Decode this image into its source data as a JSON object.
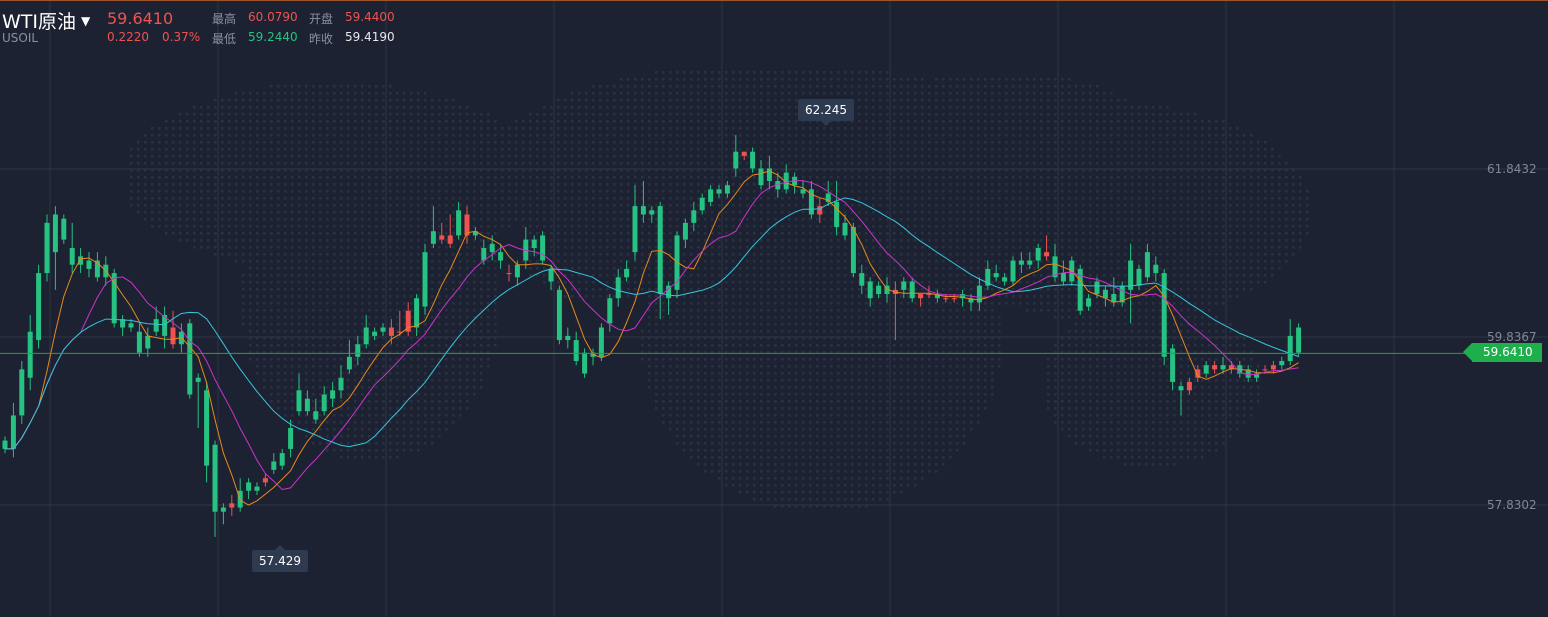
{
  "header": {
    "symbol_name": "WTI原油",
    "symbol_code": "USOIL",
    "last_price": "59.6410",
    "change": "0.2220",
    "change_pct": "0.37%",
    "high_label": "最高",
    "high_value": "60.0790",
    "low_label": "最低",
    "low_value": "59.2440",
    "open_label": "开盘",
    "open_value": "59.4400",
    "prev_close_label": "昨收",
    "prev_close_value": "59.4190"
  },
  "colors": {
    "up": "#ef5350",
    "down": "#26c281",
    "ma_fast": "#e8891b",
    "ma_mid": "#cc33cc",
    "ma_slow": "#38c6da",
    "current_line": "#2e9e3f"
  },
  "chart_data": {
    "type": "candlestick",
    "y_axis_ticks": [
      "61.8432",
      "59.8367",
      "57.8302"
    ],
    "current_price_label": "59.6410",
    "annotations": {
      "max_label": "62.245",
      "min_label": "57.429"
    },
    "candles": [
      [
        58.6,
        58.5,
        58.45,
        58.65
      ],
      [
        58.9,
        58.5,
        58.4,
        59.05
      ],
      [
        59.45,
        58.9,
        58.8,
        59.55
      ],
      [
        59.9,
        59.35,
        59.2,
        60.1
      ],
      [
        60.6,
        59.8,
        59.7,
        60.7
      ],
      [
        61.2,
        60.6,
        60.5,
        61.3
      ],
      [
        61.3,
        60.85,
        60.4,
        61.4
      ],
      [
        61.25,
        61.0,
        60.95,
        61.3
      ],
      [
        60.9,
        60.7,
        60.6,
        61.2
      ],
      [
        60.8,
        60.7,
        60.6,
        60.9
      ],
      [
        60.75,
        60.65,
        60.55,
        60.85
      ],
      [
        60.75,
        60.55,
        60.5,
        60.85
      ],
      [
        60.7,
        60.55,
        60.45,
        60.8
      ],
      [
        60.6,
        60.0,
        59.95,
        60.65
      ],
      [
        60.05,
        59.95,
        59.85,
        60.1
      ],
      [
        60.0,
        59.95,
        59.9,
        60.05
      ],
      [
        59.9,
        59.65,
        59.6,
        60.0
      ],
      [
        59.85,
        59.7,
        59.6,
        59.95
      ],
      [
        60.05,
        59.9,
        59.85,
        60.2
      ],
      [
        60.1,
        59.85,
        59.7,
        60.2
      ],
      [
        59.75,
        59.95,
        59.7,
        60.15
      ],
      [
        59.9,
        59.75,
        59.65,
        60.0
      ],
      [
        60.0,
        59.15,
        59.1,
        60.05
      ],
      [
        59.35,
        59.3,
        58.75,
        59.4
      ],
      [
        59.2,
        58.3,
        58.1,
        59.3
      ],
      [
        58.55,
        57.75,
        57.45,
        58.6
      ],
      [
        57.8,
        57.75,
        57.6,
        57.85
      ],
      [
        57.8,
        57.85,
        57.7,
        57.95
      ],
      [
        58.0,
        57.8,
        57.75,
        58.15
      ],
      [
        58.1,
        58.0,
        57.9,
        58.15
      ],
      [
        58.05,
        58.0,
        57.95,
        58.1
      ],
      [
        58.1,
        58.15,
        58.05,
        58.2
      ],
      [
        58.35,
        58.25,
        58.2,
        58.45
      ],
      [
        58.45,
        58.3,
        58.25,
        58.5
      ],
      [
        58.75,
        58.5,
        58.4,
        58.85
      ],
      [
        59.2,
        58.95,
        58.9,
        59.4
      ],
      [
        59.1,
        58.95,
        58.9,
        59.2
      ],
      [
        58.95,
        58.85,
        58.8,
        59.1
      ],
      [
        59.15,
        58.95,
        58.9,
        59.25
      ],
      [
        59.2,
        59.1,
        59.0,
        59.3
      ],
      [
        59.35,
        59.2,
        59.1,
        59.5
      ],
      [
        59.6,
        59.45,
        59.4,
        59.8
      ],
      [
        59.75,
        59.6,
        59.5,
        59.85
      ],
      [
        59.95,
        59.75,
        59.7,
        60.1
      ],
      [
        59.9,
        59.85,
        59.8,
        59.95
      ],
      [
        59.95,
        59.9,
        59.85,
        60.0
      ],
      [
        59.85,
        59.95,
        59.75,
        60.05
      ],
      [
        59.9,
        59.9,
        59.85,
        60.15
      ],
      [
        59.9,
        60.15,
        59.85,
        60.25
      ],
      [
        60.3,
        59.95,
        59.85,
        60.35
      ],
      [
        60.85,
        60.2,
        60.1,
        60.95
      ],
      [
        61.1,
        60.95,
        60.9,
        61.4
      ],
      [
        61.0,
        61.05,
        60.95,
        61.2
      ],
      [
        60.95,
        61.05,
        60.9,
        61.3
      ],
      [
        61.35,
        61.05,
        61.0,
        61.45
      ],
      [
        61.05,
        61.3,
        60.95,
        61.4
      ],
      [
        61.1,
        61.05,
        61.0,
        61.15
      ],
      [
        60.9,
        60.75,
        60.7,
        61.0
      ],
      [
        60.95,
        60.85,
        60.75,
        61.05
      ],
      [
        60.85,
        60.75,
        60.65,
        60.95
      ],
      [
        60.6,
        60.6,
        60.5,
        60.7
      ],
      [
        60.7,
        60.55,
        60.45,
        60.75
      ],
      [
        61.0,
        60.75,
        60.65,
        61.15
      ],
      [
        61.0,
        60.9,
        60.8,
        61.05
      ],
      [
        61.05,
        60.75,
        60.7,
        61.1
      ],
      [
        60.65,
        60.5,
        60.4,
        60.7
      ],
      [
        60.4,
        59.8,
        59.75,
        60.45
      ],
      [
        59.85,
        59.8,
        59.7,
        59.95
      ],
      [
        59.8,
        59.55,
        59.5,
        59.9
      ],
      [
        59.65,
        59.4,
        59.35,
        59.7
      ],
      [
        59.65,
        59.6,
        59.5,
        59.7
      ],
      [
        59.95,
        59.6,
        59.55,
        60.0
      ],
      [
        60.3,
        60.0,
        59.9,
        60.35
      ],
      [
        60.55,
        60.3,
        60.2,
        60.65
      ],
      [
        60.65,
        60.55,
        60.5,
        60.75
      ],
      [
        61.4,
        60.85,
        60.75,
        61.65
      ],
      [
        61.4,
        61.3,
        61.2,
        61.7
      ],
      [
        61.35,
        61.3,
        61.2,
        61.4
      ],
      [
        61.4,
        60.35,
        60.05,
        61.45
      ],
      [
        60.45,
        60.3,
        60.1,
        60.5
      ],
      [
        61.05,
        60.4,
        60.3,
        61.1
      ],
      [
        61.2,
        61.0,
        60.9,
        61.25
      ],
      [
        61.35,
        61.2,
        61.1,
        61.45
      ],
      [
        61.5,
        61.35,
        61.3,
        61.55
      ],
      [
        61.6,
        61.45,
        61.4,
        61.65
      ],
      [
        61.6,
        61.55,
        61.5,
        61.65
      ],
      [
        61.65,
        61.55,
        61.5,
        61.7
      ],
      [
        62.05,
        61.85,
        61.75,
        62.25
      ],
      [
        62.0,
        62.05,
        61.95,
        62.05
      ],
      [
        62.05,
        61.85,
        61.8,
        62.1
      ],
      [
        61.85,
        61.65,
        61.6,
        61.95
      ],
      [
        61.85,
        61.7,
        61.6,
        62.0
      ],
      [
        61.7,
        61.6,
        61.5,
        61.8
      ],
      [
        61.8,
        61.6,
        61.55,
        61.9
      ],
      [
        61.75,
        61.65,
        61.55,
        61.8
      ],
      [
        61.6,
        61.55,
        61.5,
        61.7
      ],
      [
        61.6,
        61.3,
        61.25,
        61.7
      ],
      [
        61.3,
        61.4,
        61.2,
        61.5
      ],
      [
        61.55,
        61.45,
        61.4,
        61.7
      ],
      [
        61.45,
        61.15,
        61.05,
        61.7
      ],
      [
        61.2,
        61.05,
        61.0,
        61.3
      ],
      [
        61.15,
        60.6,
        60.55,
        61.2
      ],
      [
        60.6,
        60.45,
        60.35,
        60.7
      ],
      [
        60.5,
        60.3,
        60.2,
        60.55
      ],
      [
        60.45,
        60.35,
        60.3,
        60.5
      ],
      [
        60.45,
        60.35,
        60.25,
        60.55
      ],
      [
        60.35,
        60.4,
        59.8,
        60.5
      ],
      [
        60.5,
        60.4,
        60.3,
        60.55
      ],
      [
        60.5,
        60.3,
        60.25,
        60.55
      ],
      [
        60.3,
        60.35,
        60.2,
        60.35
      ],
      [
        60.35,
        60.35,
        60.3,
        60.45
      ],
      [
        60.35,
        60.3,
        60.25,
        60.4
      ],
      [
        60.3,
        60.3,
        60.25,
        60.35
      ],
      [
        60.3,
        60.3,
        60.25,
        60.35
      ],
      [
        60.35,
        60.3,
        60.2,
        60.4
      ],
      [
        60.3,
        60.25,
        60.15,
        60.35
      ],
      [
        60.45,
        60.25,
        60.15,
        60.55
      ],
      [
        60.65,
        60.45,
        60.4,
        60.75
      ],
      [
        60.6,
        60.55,
        60.5,
        60.7
      ],
      [
        60.55,
        60.5,
        60.45,
        60.6
      ],
      [
        60.75,
        60.5,
        60.45,
        60.8
      ],
      [
        60.75,
        60.7,
        60.6,
        60.85
      ],
      [
        60.75,
        60.7,
        60.65,
        60.85
      ],
      [
        60.9,
        60.75,
        60.65,
        60.95
      ],
      [
        60.8,
        60.85,
        60.75,
        61.05
      ],
      [
        60.8,
        60.55,
        60.5,
        60.95
      ],
      [
        60.6,
        60.5,
        60.45,
        60.75
      ],
      [
        60.75,
        60.5,
        60.45,
        60.8
      ],
      [
        60.65,
        60.15,
        60.1,
        60.7
      ],
      [
        60.3,
        60.2,
        60.15,
        60.35
      ],
      [
        60.5,
        60.35,
        60.3,
        60.55
      ],
      [
        60.4,
        60.3,
        60.2,
        60.45
      ],
      [
        60.35,
        60.25,
        60.2,
        60.55
      ],
      [
        60.45,
        60.25,
        60.2,
        60.5
      ],
      [
        60.75,
        60.4,
        60.0,
        60.95
      ],
      [
        60.65,
        60.45,
        60.4,
        60.7
      ],
      [
        60.85,
        60.55,
        60.5,
        60.95
      ],
      [
        60.7,
        60.6,
        60.5,
        60.8
      ],
      [
        60.6,
        59.6,
        59.5,
        60.65
      ],
      [
        59.7,
        59.3,
        59.2,
        59.75
      ],
      [
        59.25,
        59.2,
        58.9,
        59.3
      ],
      [
        59.2,
        59.3,
        59.15,
        59.35
      ],
      [
        59.35,
        59.45,
        59.3,
        59.5
      ],
      [
        59.5,
        59.4,
        59.35,
        59.55
      ],
      [
        59.45,
        59.5,
        59.4,
        59.55
      ],
      [
        59.5,
        59.45,
        59.4,
        59.6
      ],
      [
        59.45,
        59.5,
        59.4,
        59.55
      ],
      [
        59.5,
        59.4,
        59.35,
        59.55
      ],
      [
        59.45,
        59.35,
        59.3,
        59.5
      ],
      [
        59.4,
        59.35,
        59.3,
        59.45
      ],
      [
        59.45,
        59.45,
        59.4,
        59.5
      ],
      [
        59.45,
        59.5,
        59.4,
        59.55
      ],
      [
        59.55,
        59.5,
        59.45,
        59.6
      ],
      [
        59.85,
        59.55,
        59.5,
        60.05
      ],
      [
        59.95,
        59.65,
        59.6,
        60.0
      ]
    ]
  }
}
